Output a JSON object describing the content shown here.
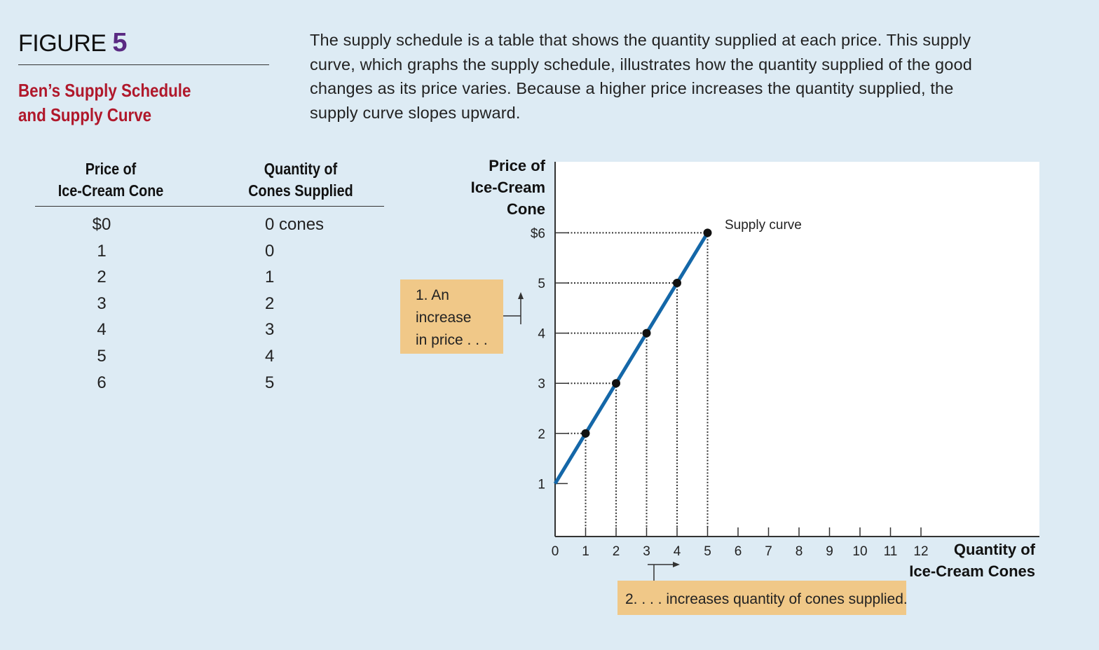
{
  "figure": {
    "label": "FIGURE",
    "number": "5",
    "title_line1": "Ben’s Supply Schedule",
    "title_line2": "and Supply Curve"
  },
  "caption": {
    "lines": [
      "The supply schedule is a table that shows the quantity supplied at each price. This supply",
      "curve, which graphs the supply schedule, illustrates how the quantity supplied of the good",
      "changes as its price varies. Because a higher price increases the quantity supplied, the",
      "supply curve slopes upward."
    ]
  },
  "schedule": {
    "price_header_line1": "Price of",
    "price_header_line2": "Ice-Cream Cone",
    "qty_header_line1": "Quantity of",
    "qty_header_line2": "Cones Supplied",
    "prices": [
      "$0",
      "1",
      "2",
      "3",
      "4",
      "5",
      "6"
    ],
    "quantities": [
      "0 cones",
      "0",
      "1",
      "2",
      "3",
      "4",
      "5"
    ]
  },
  "chart_data": {
    "type": "line",
    "ylabel_lines": [
      "Price of",
      "Ice-Cream",
      "Cone"
    ],
    "xlabel_lines": [
      "Quantity of",
      "Ice-Cream Cones"
    ],
    "xlim": [
      0,
      16
    ],
    "ylim": [
      0,
      7.4
    ],
    "x_ticks": [
      "0",
      "1",
      "2",
      "3",
      "4",
      "5",
      "6",
      "7",
      "8",
      "9",
      "10",
      "11",
      "12"
    ],
    "y_ticks": [
      {
        "value": 1,
        "label": "1"
      },
      {
        "value": 2,
        "label": "2"
      },
      {
        "value": 3,
        "label": "3"
      },
      {
        "value": 4,
        "label": "4"
      },
      {
        "value": 5,
        "label": "5"
      },
      {
        "value": 6,
        "label": "$6"
      }
    ],
    "series": [
      {
        "name": "Supply curve",
        "line": [
          [
            0,
            1
          ],
          [
            5,
            6
          ]
        ],
        "points": [
          [
            1,
            2
          ],
          [
            2,
            3
          ],
          [
            3,
            4
          ],
          [
            4,
            5
          ],
          [
            5,
            6
          ]
        ],
        "color": "#1467a8"
      }
    ],
    "annotations": {
      "price_note_lines": [
        "1. An",
        "increase",
        "in price . . ."
      ],
      "qty_note": "2. . . . increases quantity of cones supplied.",
      "note_fill": "#f0c888"
    }
  }
}
